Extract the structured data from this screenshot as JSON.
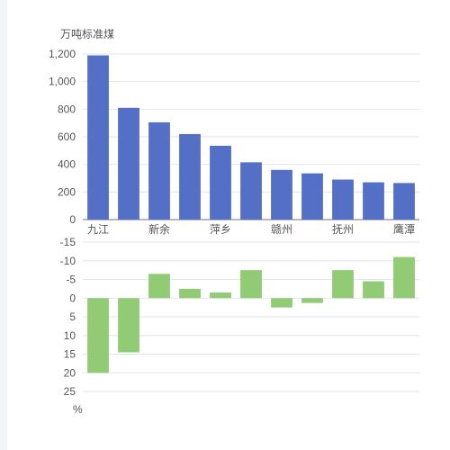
{
  "chart_data": [
    {
      "type": "bar",
      "ylabel": "万吨标准煤",
      "categories": [
        "九江",
        "",
        "新余",
        "",
        "萍乡",
        "",
        "赣州",
        "",
        "抚州",
        "",
        "鹰潭"
      ],
      "values": [
        1190,
        810,
        705,
        620,
        535,
        415,
        360,
        335,
        290,
        270,
        265
      ],
      "ylim": [
        0,
        1200
      ],
      "yticks": [
        "0",
        "200",
        "400",
        "600",
        "800",
        "1,000",
        "1,200"
      ],
      "yticks_values": [
        0,
        200,
        400,
        600,
        800,
        1000,
        1200
      ],
      "grid": true,
      "colors": {
        "bar": "#5470c6"
      }
    },
    {
      "type": "bar",
      "ylabel": "%",
      "values": [
        20,
        14.5,
        -6.5,
        -2.5,
        -1.5,
        -7.5,
        2.5,
        1.3,
        -7.5,
        -4.5,
        -11
      ],
      "ylim": [
        -15,
        25
      ],
      "y_inverted": true,
      "yticks": [
        "-15",
        "-10",
        "-5",
        "0",
        "5",
        "10",
        "15",
        "20",
        "25"
      ],
      "yticks_values": [
        -15,
        -10,
        -5,
        0,
        5,
        10,
        15,
        20,
        25
      ],
      "grid": true,
      "colors": {
        "bar": "#91cc75"
      }
    }
  ],
  "colors": {
    "grid": "#e0e6f1",
    "axis": "#6e7079",
    "text": "#555555"
  }
}
